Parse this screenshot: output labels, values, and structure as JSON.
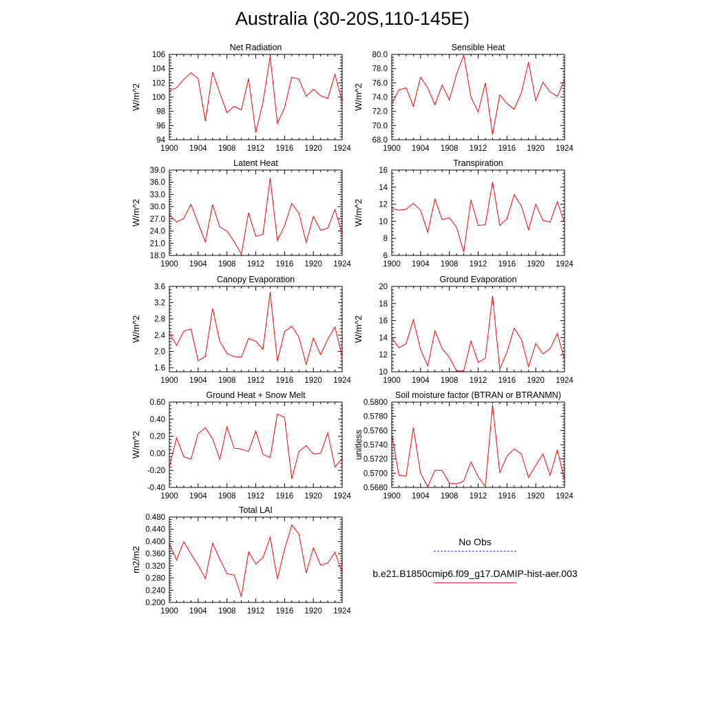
{
  "title": "Australia (30-20S,110-145E)",
  "legend": {
    "items": [
      {
        "label": "No Obs",
        "color": "#3b3bd8",
        "style": "dashed"
      },
      {
        "label": "b.e21.B1850cmip6.f09_g17.DAMIP-hist-aer.003",
        "color": "#ff2a2a",
        "style": "solid"
      }
    ]
  },
  "line_color": "#ff0000",
  "chart_data": [
    {
      "type": "line",
      "title": "Net Radiation",
      "ylabel": "W/m^2",
      "xlim": [
        1900,
        1924
      ],
      "ylim": [
        94,
        106
      ],
      "xticks": [
        1900,
        1904,
        1908,
        1912,
        1916,
        1920,
        1924
      ],
      "xtick_labels": [
        "1900",
        "1904",
        "1908",
        "1912",
        "1916",
        "1920",
        "1924"
      ],
      "yticks": [
        94,
        96,
        98,
        100,
        102,
        104,
        106
      ],
      "ytick_labels": [
        "94",
        "96",
        "98",
        "100",
        "102",
        "104",
        "106"
      ],
      "x": [
        1900,
        1901,
        1902,
        1903,
        1904,
        1905,
        1906,
        1907,
        1908,
        1909,
        1910,
        1911,
        1912,
        1913,
        1914,
        1915,
        1916,
        1917,
        1918,
        1919,
        1920,
        1921,
        1922,
        1923,
        1924
      ],
      "series": [
        {
          "values": [
            100.9,
            101.3,
            102.5,
            103.4,
            102.6,
            96.6,
            103.5,
            100.6,
            97.8,
            98.7,
            98.2,
            102.6,
            95.0,
            99.3,
            105.7,
            96.3,
            98.5,
            102.8,
            102.5,
            100.1,
            101.1,
            100.2,
            99.8,
            103.2,
            99.3
          ]
        }
      ]
    },
    {
      "type": "line",
      "title": "Sensible Heat",
      "ylabel": "W/m^2",
      "xlim": [
        1900,
        1924
      ],
      "ylim": [
        68,
        80
      ],
      "xticks": [
        1900,
        1904,
        1908,
        1912,
        1916,
        1920,
        1924
      ],
      "xtick_labels": [
        "1900",
        "1904",
        "1908",
        "1912",
        "1916",
        "1920",
        "1924"
      ],
      "yticks": [
        68,
        70,
        72,
        74,
        76,
        78,
        80
      ],
      "ytick_labels": [
        "68.0",
        "70.0",
        "72.0",
        "74.0",
        "76.0",
        "78.0",
        "80.0"
      ],
      "x": [
        1900,
        1901,
        1902,
        1903,
        1904,
        1905,
        1906,
        1907,
        1908,
        1909,
        1910,
        1911,
        1912,
        1913,
        1914,
        1915,
        1916,
        1917,
        1918,
        1919,
        1920,
        1921,
        1922,
        1923,
        1924
      ],
      "series": [
        {
          "values": [
            73.0,
            75.0,
            75.3,
            72.7,
            76.8,
            75.3,
            72.9,
            75.7,
            73.6,
            77.2,
            79.9,
            74.0,
            71.9,
            76.0,
            68.7,
            74.3,
            73.1,
            72.3,
            74.6,
            78.9,
            73.5,
            76.1,
            74.7,
            74.1,
            76.4
          ]
        }
      ]
    },
    {
      "type": "line",
      "title": "Latent Heat",
      "ylabel": "W/m^2",
      "xlim": [
        1900,
        1924
      ],
      "ylim": [
        18,
        39
      ],
      "xticks": [
        1900,
        1904,
        1908,
        1912,
        1916,
        1920,
        1924
      ],
      "xtick_labels": [
        "1900",
        "1904",
        "1908",
        "1912",
        "1916",
        "1920",
        "1924"
      ],
      "yticks": [
        18,
        21,
        24,
        27,
        30,
        33,
        36,
        39
      ],
      "ytick_labels": [
        "18.0",
        "21.0",
        "24.0",
        "27.0",
        "30.0",
        "33.0",
        "36.0",
        "39.0"
      ],
      "x": [
        1900,
        1901,
        1902,
        1903,
        1904,
        1905,
        1906,
        1907,
        1908,
        1909,
        1910,
        1911,
        1912,
        1913,
        1914,
        1915,
        1916,
        1917,
        1918,
        1919,
        1920,
        1921,
        1922,
        1923,
        1924
      ],
      "series": [
        {
          "values": [
            28.0,
            26.2,
            27.1,
            30.6,
            25.9,
            21.3,
            30.5,
            25.0,
            24.0,
            21.4,
            18.3,
            28.5,
            22.7,
            23.2,
            37.0,
            21.7,
            25.3,
            30.8,
            28.4,
            21.2,
            27.6,
            24.2,
            24.7,
            29.3,
            23.2
          ]
        }
      ]
    },
    {
      "type": "line",
      "title": "Transpiration",
      "ylabel": "W/m^2",
      "xlim": [
        1900,
        1924
      ],
      "ylim": [
        6,
        16
      ],
      "xticks": [
        1900,
        1904,
        1908,
        1912,
        1916,
        1920,
        1924
      ],
      "xtick_labels": [
        "1900",
        "1904",
        "1908",
        "1912",
        "1916",
        "1920",
        "1924"
      ],
      "yticks": [
        6,
        8,
        10,
        12,
        14,
        16
      ],
      "ytick_labels": [
        "6",
        "8",
        "10",
        "12",
        "14",
        "16"
      ],
      "x": [
        1900,
        1901,
        1902,
        1903,
        1904,
        1905,
        1906,
        1907,
        1908,
        1909,
        1910,
        1911,
        1912,
        1913,
        1914,
        1915,
        1916,
        1917,
        1918,
        1919,
        1920,
        1921,
        1922,
        1923,
        1924
      ],
      "series": [
        {
          "values": [
            11.5,
            11.3,
            11.4,
            12.1,
            11.3,
            8.7,
            12.6,
            10.2,
            10.4,
            9.3,
            6.4,
            12.5,
            9.5,
            9.6,
            14.6,
            9.5,
            10.3,
            13.1,
            11.8,
            9.0,
            12.0,
            10.1,
            9.9,
            12.3,
            9.8
          ]
        }
      ]
    },
    {
      "type": "line",
      "title": "Canopy Evaporation",
      "ylabel": "W/m^2",
      "xlim": [
        1900,
        1924
      ],
      "ylim": [
        1.5,
        3.6
      ],
      "xticks": [
        1900,
        1904,
        1908,
        1912,
        1916,
        1920,
        1924
      ],
      "xtick_labels": [
        "1900",
        "1904",
        "1908",
        "1912",
        "1916",
        "1920",
        "1924"
      ],
      "yticks": [
        1.6,
        2.0,
        2.4,
        2.8,
        3.2,
        3.6
      ],
      "ytick_labels": [
        "1.6",
        "2.0",
        "2.4",
        "2.8",
        "3.2",
        "3.6"
      ],
      "x": [
        1900,
        1901,
        1902,
        1903,
        1904,
        1905,
        1906,
        1907,
        1908,
        1909,
        1910,
        1911,
        1912,
        1913,
        1914,
        1915,
        1916,
        1917,
        1918,
        1919,
        1920,
        1921,
        1922,
        1923,
        1924
      ],
      "series": [
        {
          "values": [
            2.45,
            2.15,
            2.5,
            2.55,
            1.77,
            1.88,
            3.06,
            2.25,
            1.95,
            1.87,
            1.86,
            2.32,
            2.25,
            2.05,
            3.46,
            1.76,
            2.49,
            2.62,
            2.35,
            1.68,
            2.33,
            1.92,
            2.3,
            2.6,
            1.87
          ]
        }
      ]
    },
    {
      "type": "line",
      "title": "Ground Evaporation",
      "ylabel": "W/m^2",
      "xlim": [
        1900,
        1924
      ],
      "ylim": [
        10,
        20
      ],
      "xticks": [
        1900,
        1904,
        1908,
        1912,
        1916,
        1920,
        1924
      ],
      "xtick_labels": [
        "1900",
        "1904",
        "1908",
        "1912",
        "1916",
        "1920",
        "1924"
      ],
      "yticks": [
        10,
        12,
        14,
        16,
        18,
        20
      ],
      "ytick_labels": [
        "10",
        "12",
        "14",
        "16",
        "18",
        "20"
      ],
      "x": [
        1900,
        1901,
        1902,
        1903,
        1904,
        1905,
        1906,
        1907,
        1908,
        1909,
        1910,
        1911,
        1912,
        1913,
        1914,
        1915,
        1916,
        1917,
        1918,
        1919,
        1920,
        1921,
        1922,
        1923,
        1924
      ],
      "series": [
        {
          "values": [
            14.0,
            12.8,
            13.3,
            16.1,
            12.6,
            10.7,
            14.8,
            12.7,
            11.7,
            10.1,
            10.1,
            13.6,
            11.1,
            11.6,
            18.9,
            10.3,
            12.3,
            15.1,
            13.8,
            10.6,
            13.3,
            12.1,
            12.7,
            14.5,
            11.4
          ]
        }
      ]
    },
    {
      "type": "line",
      "title": "Ground Heat + Snow Melt",
      "ylabel": "W/m^2",
      "xlim": [
        1900,
        1924
      ],
      "ylim": [
        -0.4,
        0.6
      ],
      "xticks": [
        1900,
        1904,
        1908,
        1912,
        1916,
        1920,
        1924
      ],
      "xtick_labels": [
        "1900",
        "1904",
        "1908",
        "1912",
        "1916",
        "1920",
        "1924"
      ],
      "yticks": [
        -0.4,
        -0.2,
        0.0,
        0.2,
        0.4,
        0.6
      ],
      "ytick_labels": [
        "-0.40",
        "-0.20",
        "0.00",
        "0.20",
        "0.40",
        "0.60"
      ],
      "x": [
        1900,
        1901,
        1902,
        1903,
        1904,
        1905,
        1906,
        1907,
        1908,
        1909,
        1910,
        1911,
        1912,
        1913,
        1914,
        1915,
        1916,
        1917,
        1918,
        1919,
        1920,
        1921,
        1922,
        1923,
        1924
      ],
      "series": [
        {
          "values": [
            -0.16,
            0.18,
            -0.04,
            -0.07,
            0.23,
            0.3,
            0.17,
            -0.07,
            0.31,
            0.06,
            0.05,
            0.02,
            0.26,
            -0.01,
            -0.05,
            0.46,
            0.42,
            -0.3,
            0.02,
            0.09,
            -0.01,
            0.0,
            0.24,
            -0.16,
            -0.06
          ]
        }
      ]
    },
    {
      "type": "line",
      "title": "Soil moisture factor (BTRAN or BTRANMN)",
      "ylabel": "unitless",
      "xlim": [
        1900,
        1924
      ],
      "ylim": [
        0.568,
        0.58
      ],
      "xticks": [
        1900,
        1904,
        1908,
        1912,
        1916,
        1920,
        1924
      ],
      "xtick_labels": [
        "1900",
        "1904",
        "1908",
        "1912",
        "1916",
        "1920",
        "1924"
      ],
      "yticks": [
        0.568,
        0.57,
        0.572,
        0.574,
        0.576,
        0.578,
        0.58
      ],
      "ytick_labels": [
        "0.5680",
        "0.5700",
        "0.5720",
        "0.5740",
        "0.5760",
        "0.5780",
        "0.5800"
      ],
      "x": [
        1900,
        1901,
        1902,
        1903,
        1904,
        1905,
        1906,
        1907,
        1908,
        1909,
        1910,
        1911,
        1912,
        1913,
        1914,
        1915,
        1916,
        1917,
        1918,
        1919,
        1920,
        1921,
        1922,
        1923,
        1924
      ],
      "series": [
        {
          "values": [
            0.5755,
            0.5697,
            0.5696,
            0.5764,
            0.57,
            0.5681,
            0.5704,
            0.5704,
            0.5686,
            0.5685,
            0.5689,
            0.5716,
            0.5695,
            0.5681,
            0.5796,
            0.5701,
            0.5724,
            0.5734,
            0.5727,
            0.5694,
            0.5711,
            0.5727,
            0.5697,
            0.5733,
            0.569
          ]
        }
      ]
    },
    {
      "type": "line",
      "title": "Total LAI",
      "ylabel": "m2/m2",
      "xlim": [
        1900,
        1924
      ],
      "ylim": [
        0.2,
        0.48
      ],
      "xticks": [
        1900,
        1904,
        1908,
        1912,
        1916,
        1920,
        1924
      ],
      "xtick_labels": [
        "1900",
        "1904",
        "1908",
        "1912",
        "1916",
        "1920",
        "1924"
      ],
      "yticks": [
        0.2,
        0.24,
        0.28,
        0.32,
        0.36,
        0.4,
        0.44,
        0.48
      ],
      "ytick_labels": [
        "0.200",
        "0.240",
        "0.280",
        "0.320",
        "0.360",
        "0.400",
        "0.440",
        "0.480"
      ],
      "x": [
        1900,
        1901,
        1902,
        1903,
        1904,
        1905,
        1906,
        1907,
        1908,
        1909,
        1910,
        1911,
        1912,
        1913,
        1914,
        1915,
        1916,
        1917,
        1918,
        1919,
        1920,
        1921,
        1922,
        1923,
        1924
      ],
      "series": [
        {
          "values": [
            0.392,
            0.339,
            0.399,
            0.359,
            0.322,
            0.278,
            0.394,
            0.342,
            0.294,
            0.29,
            0.219,
            0.366,
            0.326,
            0.347,
            0.414,
            0.277,
            0.374,
            0.454,
            0.424,
            0.296,
            0.379,
            0.322,
            0.329,
            0.364,
            0.298
          ]
        }
      ]
    }
  ]
}
